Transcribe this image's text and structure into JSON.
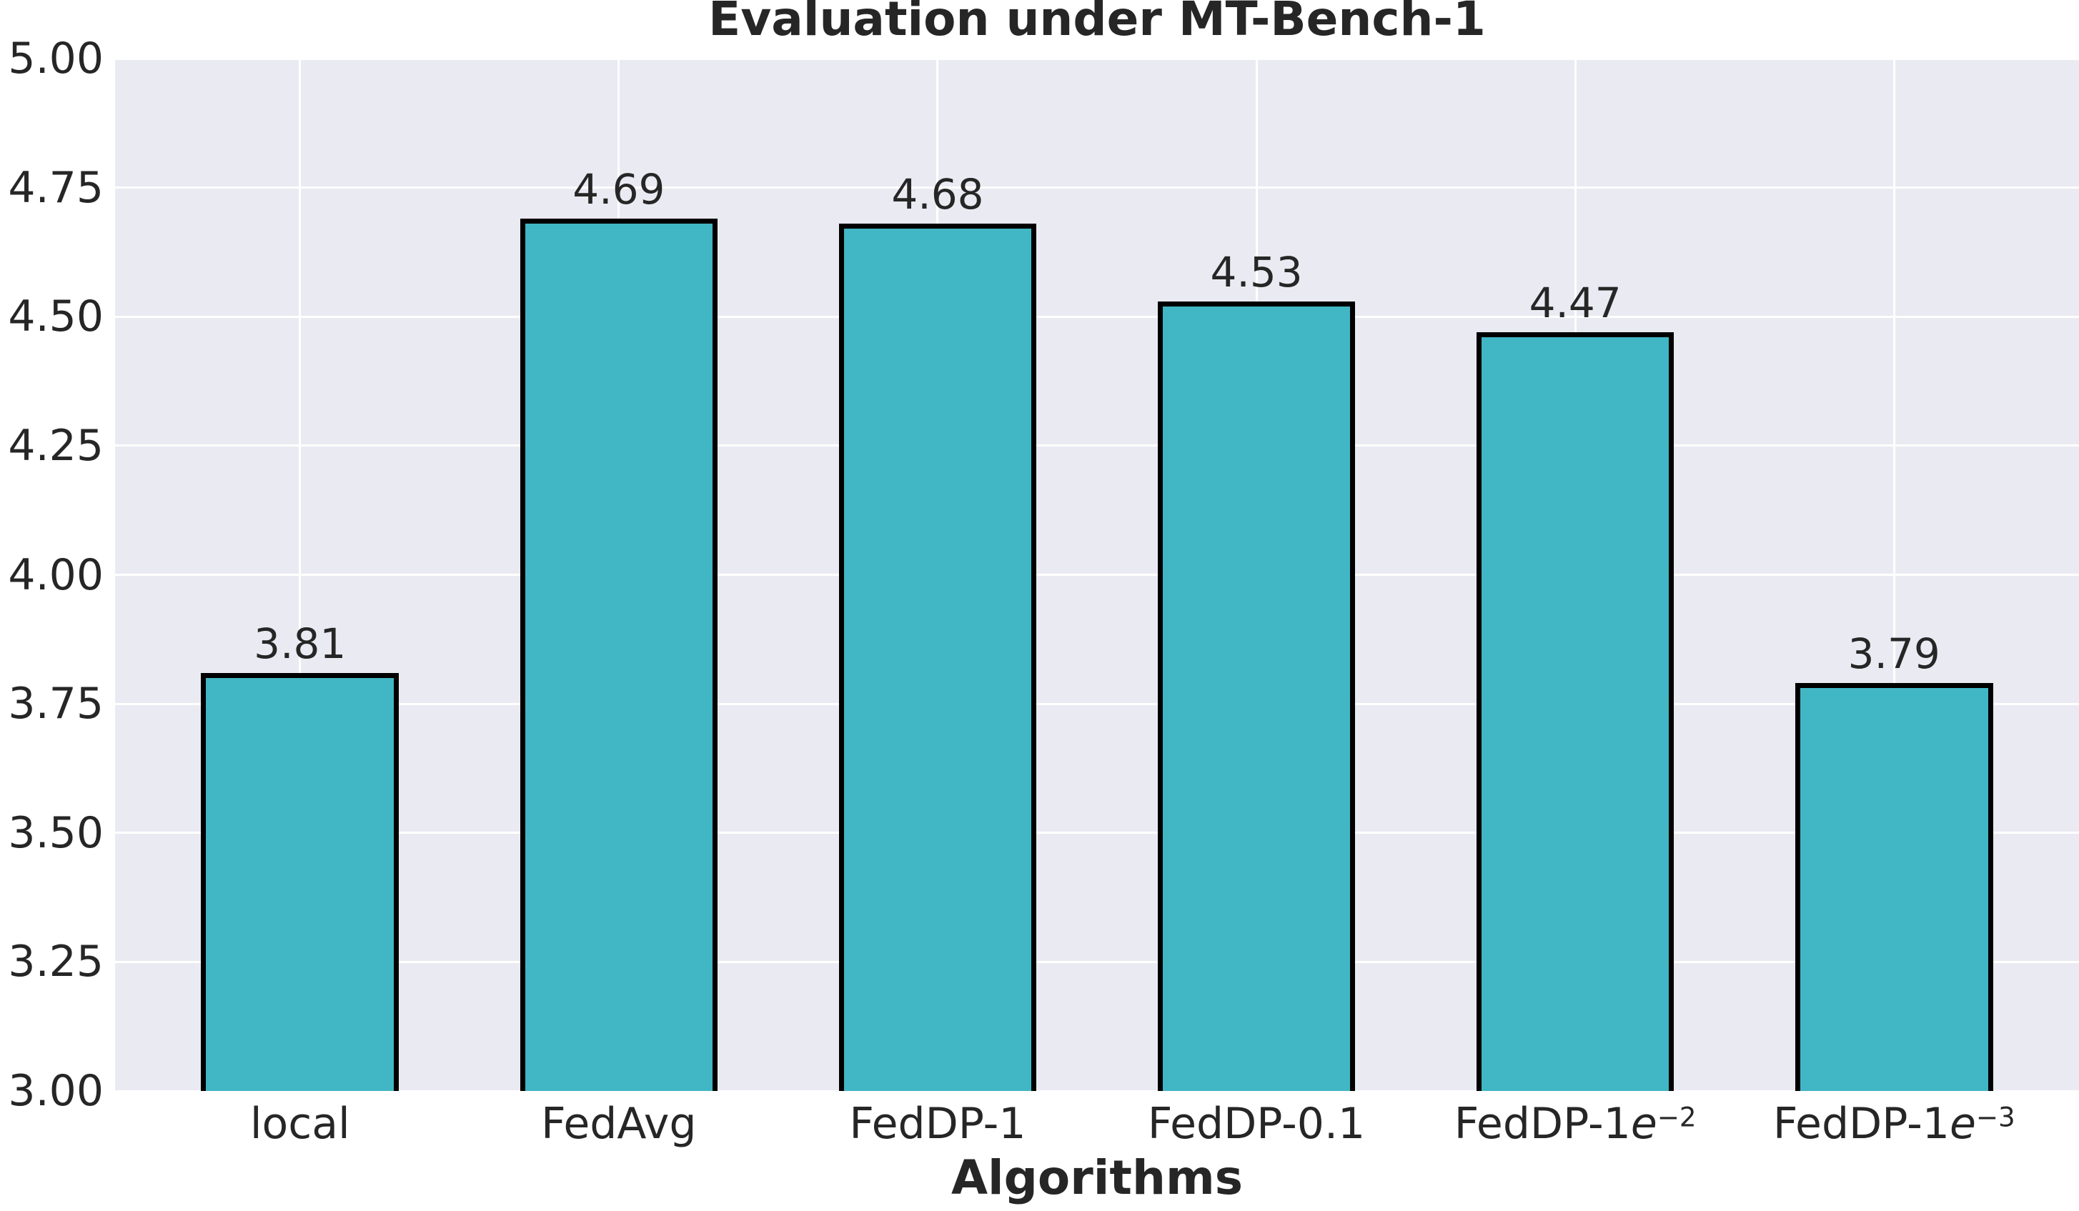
{
  "chart_data": {
    "type": "bar",
    "title": "Evaluation under MT-Bench-1",
    "xlabel": "Algorithms",
    "ylabel": "",
    "categories": [
      "local",
      "FedAvg",
      "FedDP-1",
      "FedDP-0.1",
      "FedDP-1e−2",
      "FedDP-1e−3"
    ],
    "categories_rich": [
      {
        "base": "local",
        "e": "",
        "sup": ""
      },
      {
        "base": "FedAvg",
        "e": "",
        "sup": ""
      },
      {
        "base": "FedDP-1",
        "e": "",
        "sup": ""
      },
      {
        "base": "FedDP-0.1",
        "e": "",
        "sup": ""
      },
      {
        "base": "FedDP-1",
        "e": "e",
        "sup": "−2"
      },
      {
        "base": "FedDP-1",
        "e": "e",
        "sup": "−3"
      }
    ],
    "values": [
      3.81,
      4.69,
      4.68,
      4.53,
      4.47,
      3.79
    ],
    "value_labels": [
      "3.81",
      "4.69",
      "4.68",
      "4.53",
      "4.47",
      "3.79"
    ],
    "ylim": [
      3.0,
      5.0
    ],
    "ytick_step": 0.25,
    "y_ticks": [
      {
        "value": 5.0,
        "label": "5.00"
      },
      {
        "value": 4.75,
        "label": "4.75"
      },
      {
        "value": 4.5,
        "label": "4.50"
      },
      {
        "value": 4.25,
        "label": "4.25"
      },
      {
        "value": 4.0,
        "label": "4.00"
      },
      {
        "value": 3.75,
        "label": "3.75"
      },
      {
        "value": 3.5,
        "label": "3.50"
      },
      {
        "value": 3.25,
        "label": "3.25"
      },
      {
        "value": 3.0,
        "label": "3.00"
      }
    ],
    "grid": true,
    "legend": null,
    "colors": {
      "bar_fill": "#41b6c4",
      "bar_edge": "#000000",
      "plot_background": "#eaeaf2",
      "grid_line": "#ffffff",
      "text": "#262626",
      "figure_background": "#ffffff"
    }
  }
}
